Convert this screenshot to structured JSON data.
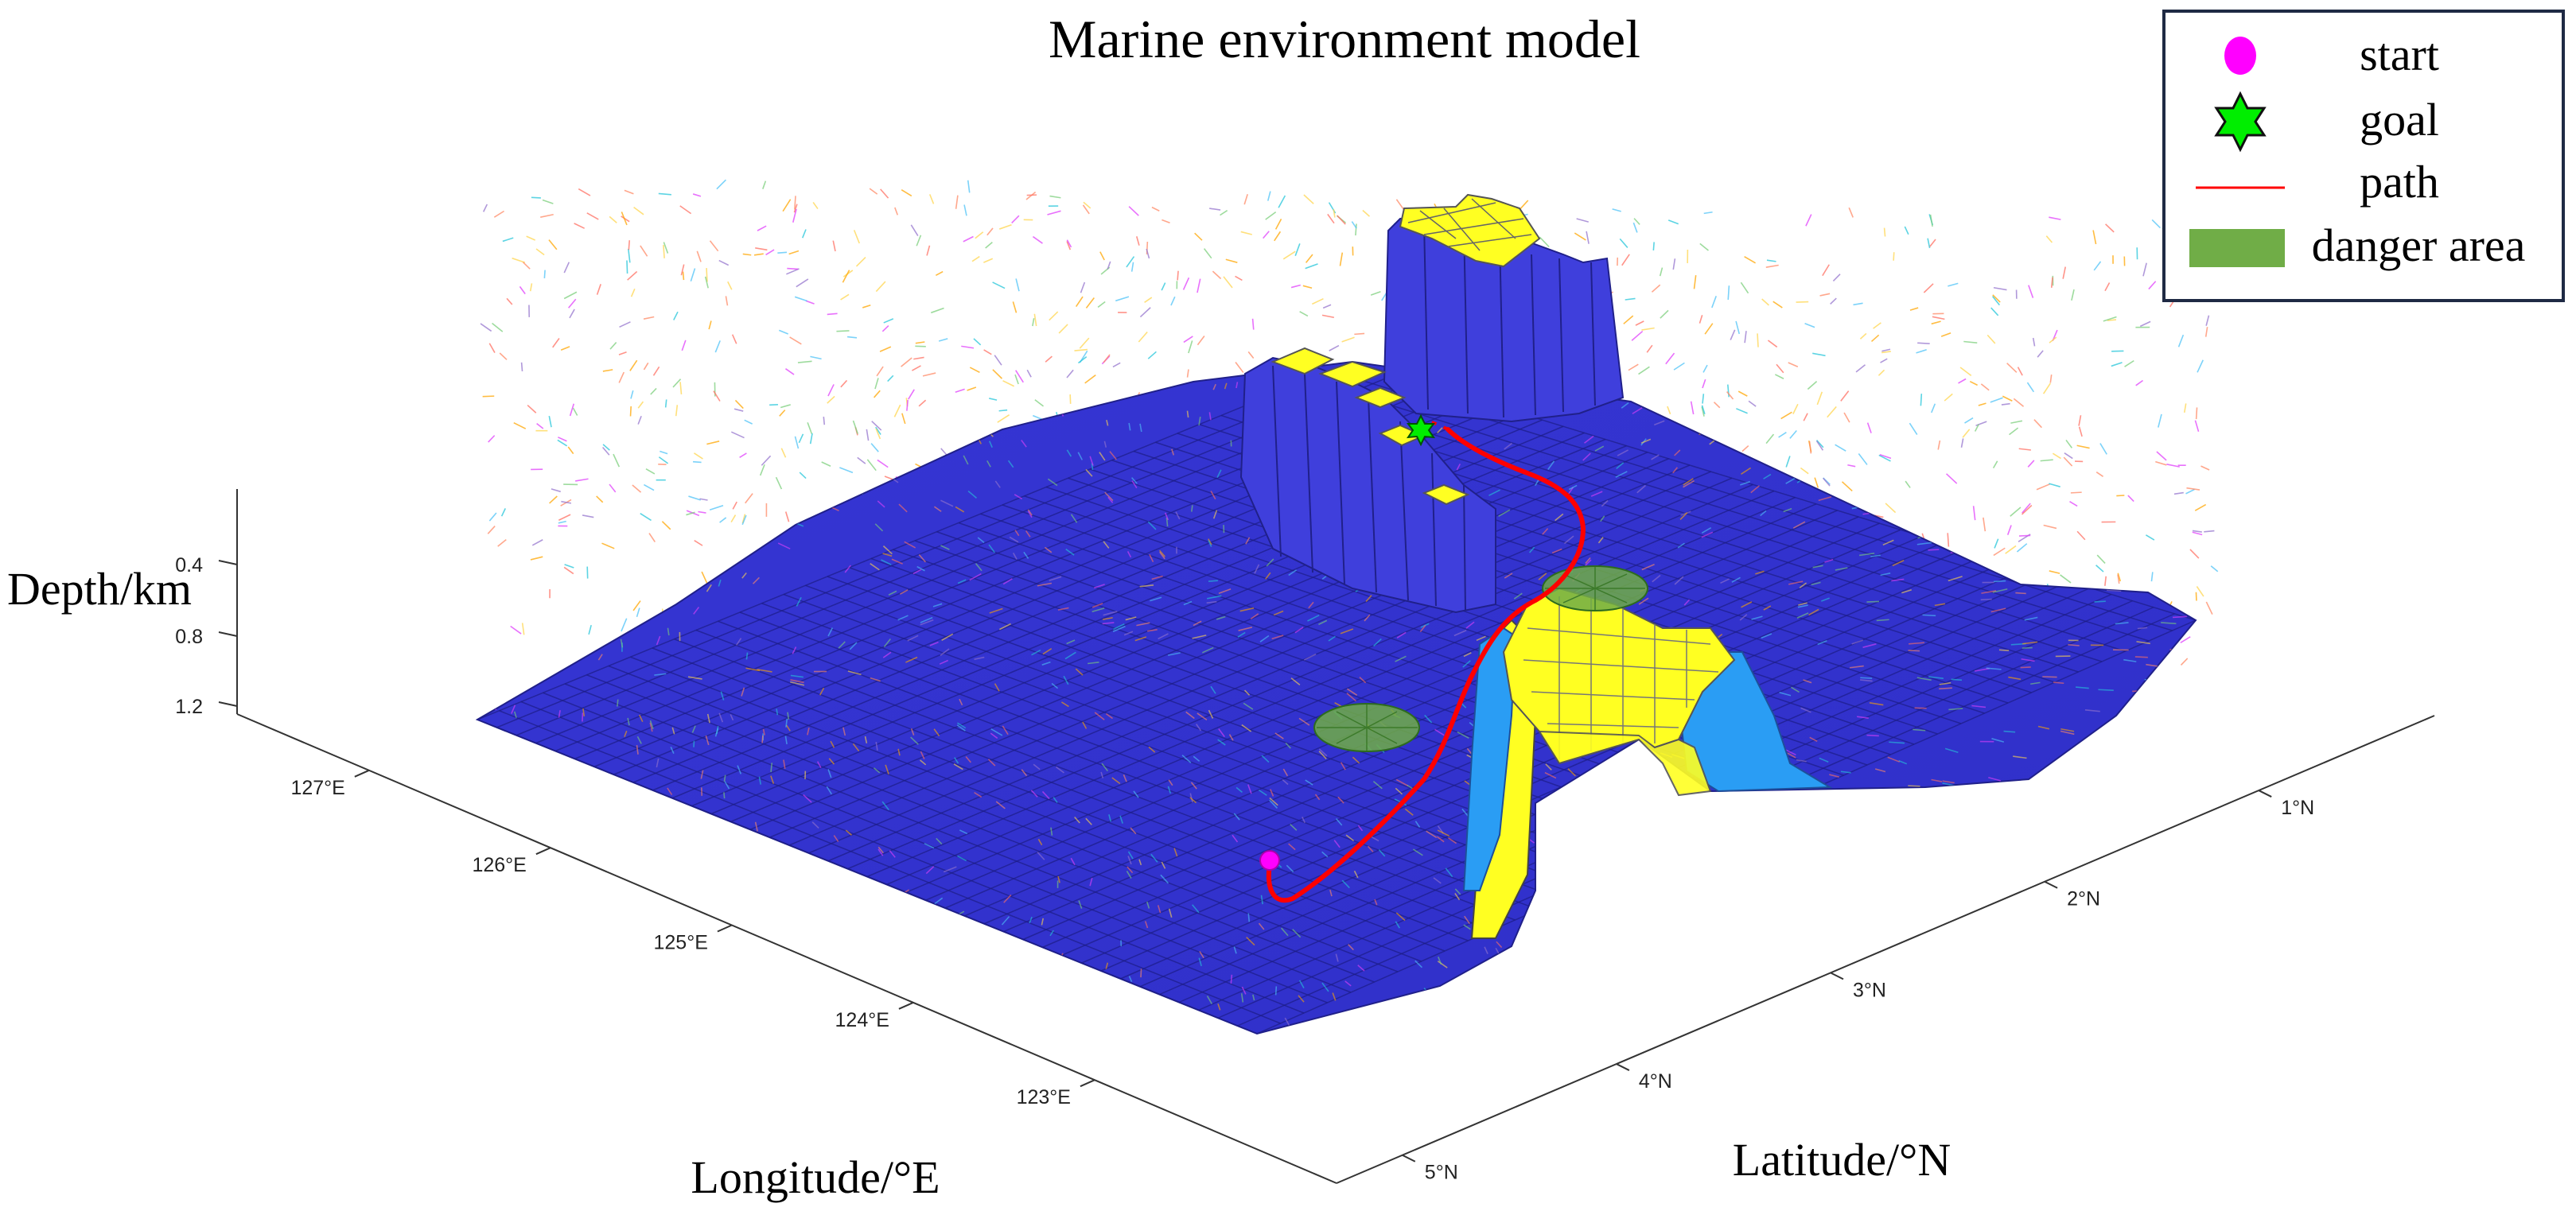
{
  "chart_data": {
    "type": "surface3d",
    "title": "Marine environment model",
    "xlabel": "Longitude/°E",
    "ylabel": "Latitude/°N",
    "zlabel": "Depth/km",
    "x_ticks": [
      "123°E",
      "124°E",
      "125°E",
      "126°E",
      "127°E"
    ],
    "y_ticks": [
      "5°N",
      "4°N",
      "3°N",
      "2°N",
      "1°N"
    ],
    "z_ticks": [
      "0.4",
      "0.8",
      "1.2"
    ],
    "legend": {
      "placement": "top-right",
      "items": [
        {
          "label": "start",
          "marker": "circle",
          "color": "#ff00ff"
        },
        {
          "label": "goal",
          "marker": "hexagram",
          "color": "#00ee00"
        },
        {
          "label": "path",
          "marker": "line",
          "color": "#ff0000"
        },
        {
          "label": "danger area",
          "marker": "patch",
          "color": "#70ad47"
        }
      ]
    },
    "colors": {
      "seabed": "#3b3bd9",
      "land_top": "#ffff22",
      "land_side": "#2a9df4",
      "path": "#ff0000",
      "start": "#ff00ff",
      "goal": "#00ee00",
      "danger": "#70ad47"
    },
    "grid": false
  }
}
